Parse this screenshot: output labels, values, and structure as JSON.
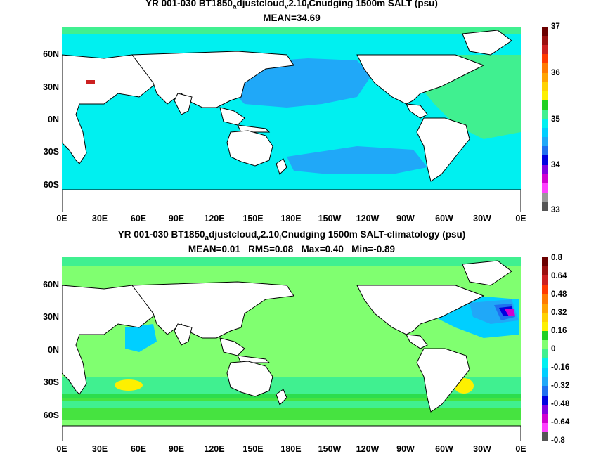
{
  "panels": [
    {
      "title_parts": [
        "YR 001-030 BT1850",
        "a",
        "djustcloud",
        "v",
        "2.10",
        "l",
        "Cnudging 1500m SALT (psu)"
      ],
      "stats": "MEAN=34.69",
      "colorbar": {
        "labels": [
          "37",
          "36",
          "35",
          "34",
          "33"
        ],
        "colors": [
          "#6b0000",
          "#9b1010",
          "#cc2020",
          "#ff3a00",
          "#ff7a00",
          "#ffa400",
          "#ffd200",
          "#fdf000",
          "#20d020",
          "#40f090",
          "#00f0f0",
          "#00cfff",
          "#20a8f8",
          "#2070f0",
          "#0000e0",
          "#8000e0",
          "#d000d0",
          "#ff40ff",
          "#999999",
          "#555555"
        ]
      },
      "ocean_color": "#00f0f0"
    },
    {
      "title_parts": [
        "YR 001-030 BT1850",
        "a",
        "djustcloud",
        "v",
        "2.10",
        "l",
        "Cnudging 1500m SALT-climatology (psu)"
      ],
      "stats": "MEAN=0.01   RMS=0.08   Max=0.40   Min=-0.89",
      "colorbar": {
        "labels": [
          "0.8",
          "0.64",
          "0.48",
          "0.32",
          "0.16",
          "0",
          "-0.16",
          "-0.32",
          "-0.48",
          "-0.64",
          "-0.8"
        ],
        "colors": [
          "#6b0000",
          "#9b1010",
          "#cc2020",
          "#ff3a00",
          "#ff7a00",
          "#ffa400",
          "#ffd200",
          "#fdf000",
          "#20d020",
          "#80ff70",
          "#40f090",
          "#00f0f0",
          "#00cfff",
          "#20a8f8",
          "#2070f0",
          "#0000e0",
          "#8000e0",
          "#d000d0",
          "#ff40ff",
          "#555555"
        ]
      },
      "ocean_color": "#80ff70"
    }
  ],
  "lat_labels": [
    "60N",
    "30N",
    "0N",
    "30S",
    "60S"
  ],
  "lon_labels": [
    "0E",
    "30E",
    "60E",
    "90E",
    "120E",
    "150E",
    "180E",
    "150W",
    "120W",
    "90W",
    "60W",
    "30W",
    "0E"
  ]
}
